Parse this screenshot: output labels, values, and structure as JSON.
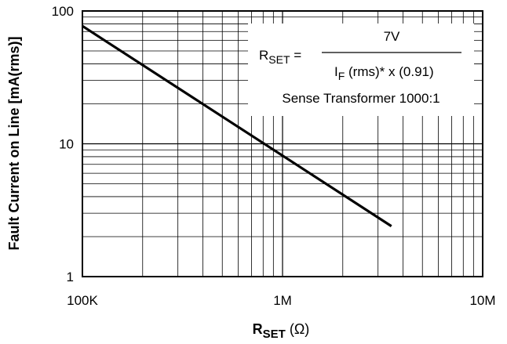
{
  "chart_data": {
    "type": "line",
    "x_scale": "log",
    "y_scale": "log",
    "xlim": [
      100000,
      10000000
    ],
    "ylim": [
      1,
      100
    ],
    "grid": true,
    "xlabel": "R",
    "xlabel_sub": "SET",
    "xlabel_unit": " (Ω)",
    "ylabel": "Fault Current on Line [mA(rms)]",
    "x_ticks": [
      {
        "value": 100000,
        "label": "100K"
      },
      {
        "value": 1000000,
        "label": "1M"
      },
      {
        "value": 10000000,
        "label": "10M"
      }
    ],
    "y_ticks": [
      {
        "value": 1,
        "label": "1"
      },
      {
        "value": 10,
        "label": "10"
      },
      {
        "value": 100,
        "label": "100"
      }
    ],
    "series": [
      {
        "x": [
          100000,
          3500000
        ],
        "y": [
          77,
          2.4
        ]
      }
    ],
    "annotation": {
      "lhs_main": "R",
      "lhs_sub": "SET",
      "equals": " =",
      "numerator": "7V",
      "den_main": "I",
      "den_sub": "F",
      "den_rest": " (rms)* x (0.91)",
      "note": "Sense Transformer 1000:1"
    }
  }
}
